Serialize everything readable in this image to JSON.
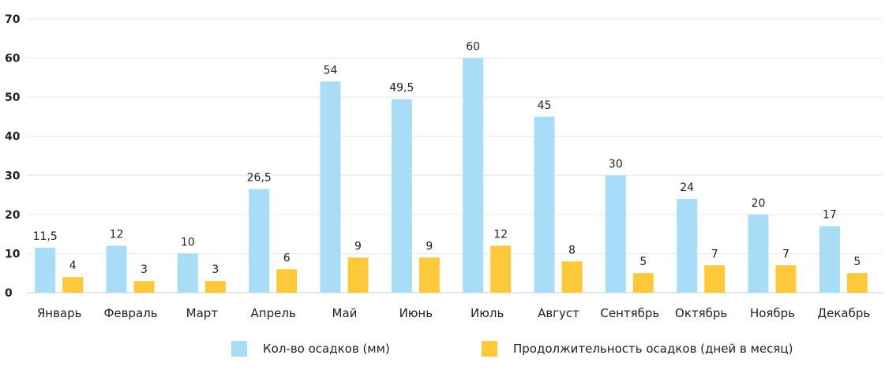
{
  "chart_data": {
    "type": "bar",
    "categories": [
      "Январь",
      "Февраль",
      "Март",
      "Апрель",
      "Май",
      "Июнь",
      "Июль",
      "Август",
      "Сентябрь",
      "Октябрь",
      "Ноябрь",
      "Декабрь"
    ],
    "series": [
      {
        "name": "Кол-во осадков (мм)",
        "color": "#a8dcf7",
        "values": [
          11.5,
          12,
          10,
          26.5,
          54,
          49.5,
          60,
          45,
          30,
          24,
          20,
          17
        ],
        "labels": [
          "11,5",
          "12",
          "10",
          "26,5",
          "54",
          "49,5",
          "60",
          "45",
          "30",
          "24",
          "20",
          "17"
        ]
      },
      {
        "name": "Продолжительность осадков (дней в месяц)",
        "color": "#fdc93b",
        "values": [
          4,
          3,
          3,
          6,
          9,
          9,
          12,
          8,
          5,
          7,
          7,
          5
        ],
        "labels": [
          "4",
          "3",
          "3",
          "6",
          "9",
          "9",
          "12",
          "8",
          "5",
          "7",
          "7",
          "5"
        ]
      }
    ],
    "ylim": [
      0,
      70
    ],
    "yticks": [
      0,
      10,
      20,
      30,
      40,
      50,
      60,
      70
    ],
    "grid": true,
    "legend_position": "bottom"
  }
}
